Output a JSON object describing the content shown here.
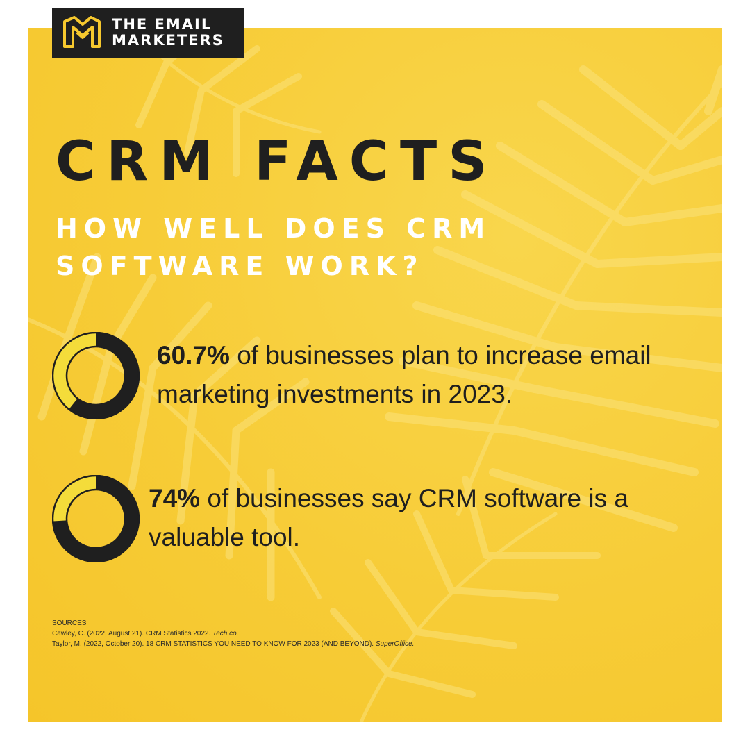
{
  "brand": {
    "name_line1": "THE EMAIL",
    "name_line2": "MARKETERS",
    "icon": "em-monogram-icon",
    "colors": {
      "logo_bg": "#1f1f1f",
      "logo_accent": "#f6c82e"
    }
  },
  "heading": {
    "title": "CRM FACTS",
    "subtitle": "HOW WELL DOES CRM SOFTWARE WORK?"
  },
  "facts": [
    {
      "percent_label": "60.7%",
      "text": " of businesses plan to increase email marketing investments in 2023.",
      "value": 60.7
    },
    {
      "percent_label": "74%",
      "text": " of businesses say CRM software is a valuable tool.",
      "value": 74
    }
  ],
  "sources": {
    "heading": "SOURCES",
    "items": [
      {
        "text": "Cawley, C. (2022, August 21). CRM Statistics 2022. ",
        "publication": "Tech.co."
      },
      {
        "text": "Taylor, M. (2022, October 20). 18 CRM STATISTICS YOU NEED TO KNOW FOR 2023 (AND BEYOND). ",
        "publication": "SuperOffice."
      }
    ]
  },
  "colors": {
    "background": "#f7cc37",
    "dark": "#1f1f1f",
    "donut_fill": "#1f1f1f",
    "donut_remainder": "#f4dc3a",
    "subtitle": "#ffffff"
  },
  "chart_data": [
    {
      "type": "pie",
      "values": [
        60.7,
        39.3
      ],
      "categories": [
        "",
        ""
      ],
      "title": ""
    },
    {
      "type": "pie",
      "values": [
        74,
        26
      ],
      "categories": [
        "",
        ""
      ],
      "title": ""
    }
  ]
}
